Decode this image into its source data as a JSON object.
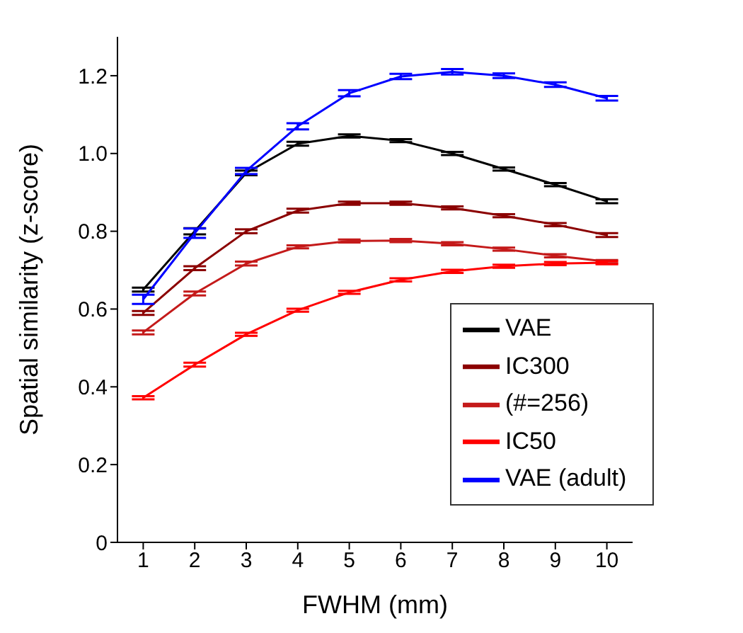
{
  "chart_data": {
    "type": "line",
    "xlabel": "FWHM (mm)",
    "ylabel": "Spatial similarity (z-score)",
    "x": [
      1,
      2,
      3,
      4,
      5,
      6,
      7,
      8,
      9,
      10
    ],
    "xlim": [
      0.5,
      10.5
    ],
    "xticks": [
      1,
      2,
      3,
      4,
      5,
      6,
      7,
      8,
      9,
      10
    ],
    "ylim": [
      0,
      1.3
    ],
    "yticks": [
      0,
      {
        "value": 0.2,
        "label": "0.2"
      },
      {
        "value": 0.4,
        "label": "0.4"
      },
      {
        "value": 0.6,
        "label": "0.6"
      },
      {
        "value": 0.8,
        "label": "0.8"
      },
      {
        "value": 1,
        "label": "1.0"
      },
      {
        "value": 1.2,
        "label": "1.2"
      }
    ],
    "grid": false,
    "legend": "bottom right",
    "marker": "none",
    "line_style": "solid",
    "series": [
      {
        "name": "VAE",
        "color": "#000000",
        "values": [
          0.65,
          0.8,
          0.95,
          1.025,
          1.045,
          1.033,
          1.0,
          0.96,
          0.92,
          0.877
        ],
        "errors": [
          0.005,
          0.008,
          0.006,
          0.005,
          0.004,
          0.004,
          0.004,
          0.004,
          0.004,
          0.005
        ]
      },
      {
        "name": "IC300",
        "color": "#8b0000",
        "values": [
          0.59,
          0.705,
          0.8,
          0.853,
          0.872,
          0.872,
          0.86,
          0.84,
          0.817,
          0.79
        ],
        "errors": [
          0.005,
          0.005,
          0.005,
          0.005,
          0.004,
          0.004,
          0.004,
          0.004,
          0.004,
          0.005
        ]
      },
      {
        "name": "(#=256)",
        "color": "#c41a1a",
        "values": [
          0.54,
          0.64,
          0.717,
          0.76,
          0.775,
          0.776,
          0.768,
          0.754,
          0.737,
          0.722
        ],
        "errors": [
          0.005,
          0.005,
          0.005,
          0.004,
          0.004,
          0.004,
          0.004,
          0.004,
          0.004,
          0.004
        ]
      },
      {
        "name": "IC50",
        "color": "#ff0000",
        "values": [
          0.372,
          0.457,
          0.535,
          0.597,
          0.643,
          0.675,
          0.697,
          0.71,
          0.717,
          0.719
        ],
        "errors": [
          0.004,
          0.005,
          0.004,
          0.004,
          0.004,
          0.004,
          0.004,
          0.004,
          0.004,
          0.004
        ]
      },
      {
        "name": "VAE (adult)",
        "color": "#0000ff",
        "values": [
          0.625,
          0.795,
          0.955,
          1.07,
          1.155,
          1.198,
          1.21,
          1.2,
          1.177,
          1.142
        ],
        "errors": [
          0.012,
          0.012,
          0.008,
          0.008,
          0.008,
          0.007,
          0.007,
          0.006,
          0.006,
          0.006
        ]
      }
    ]
  }
}
